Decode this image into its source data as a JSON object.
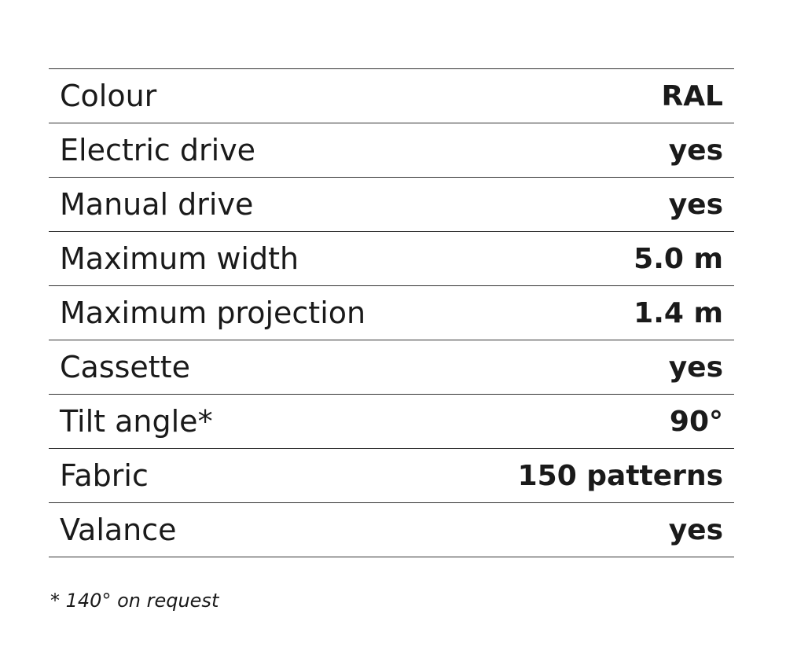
{
  "table": {
    "rows": [
      [
        "Colour",
        "RAL"
      ],
      [
        "Electric drive",
        "yes"
      ],
      [
        "Manual drive",
        "yes"
      ],
      [
        "Maximum width",
        "5.0 m"
      ],
      [
        "Maximum projection",
        "1.4 m"
      ],
      [
        "Cassette",
        "yes"
      ],
      [
        "Tilt angle*",
        "90°"
      ],
      [
        "Fabric",
        "150 patterns"
      ],
      [
        "Valance",
        "yes"
      ]
    ]
  },
  "footnote": "* 140° on request"
}
